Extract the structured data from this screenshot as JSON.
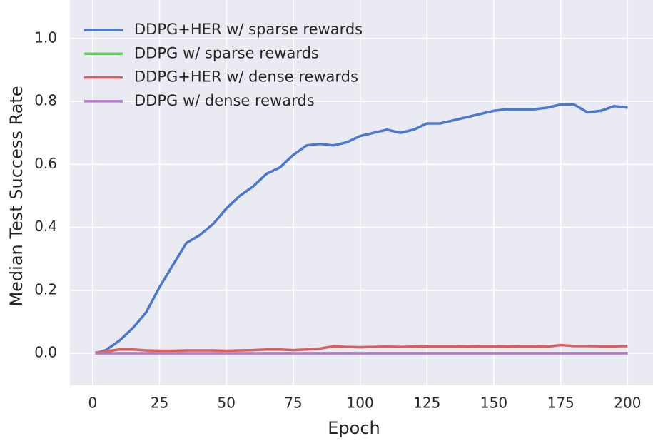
{
  "chart_data": {
    "type": "line",
    "x_label": "Epoch",
    "y_label": "Median Test Success Rate",
    "xlim": [
      -8.5,
      209.5
    ],
    "ylim": [
      -0.102,
      1.122
    ],
    "xticks": [
      0,
      25,
      50,
      75,
      100,
      125,
      150,
      175,
      200
    ],
    "yticks": [
      {
        "value": 0,
        "label": "0.0"
      },
      0.2,
      0.4,
      0.6,
      0.8,
      {
        "value": 1,
        "label": "1.0"
      }
    ],
    "grid": true,
    "legend": "upper left",
    "x": [
      1,
      5,
      10,
      15,
      20,
      25,
      30,
      35,
      40,
      45,
      50,
      55,
      60,
      65,
      70,
      75,
      80,
      85,
      90,
      95,
      100,
      105,
      110,
      115,
      120,
      125,
      130,
      135,
      140,
      145,
      150,
      155,
      160,
      165,
      170,
      175,
      180,
      185,
      190,
      195,
      200
    ],
    "series": [
      {
        "name": "DDPG+HER w/ sparse rewards",
        "color": "#4878cf",
        "values": [
          0.0,
          0.01,
          0.04,
          0.08,
          0.13,
          0.21,
          0.28,
          0.35,
          0.375,
          0.41,
          0.46,
          0.5,
          0.53,
          0.57,
          0.59,
          0.63,
          0.66,
          0.665,
          0.66,
          0.67,
          0.69,
          0.7,
          0.71,
          0.7,
          0.71,
          0.73,
          0.73,
          0.74,
          0.75,
          0.76,
          0.77,
          0.775,
          0.775,
          0.775,
          0.78,
          0.79,
          0.79,
          0.765,
          0.77,
          0.785,
          0.78
        ]
      },
      {
        "name": "DDPG w/ sparse rewards",
        "color": "#6acc65",
        "values": [
          0,
          0,
          0,
          0,
          0,
          0,
          0,
          0,
          0,
          0,
          0,
          0,
          0,
          0,
          0,
          0,
          0,
          0,
          0,
          0,
          0,
          0,
          0,
          0,
          0,
          0,
          0,
          0,
          0,
          0,
          0,
          0,
          0,
          0,
          0,
          0,
          0,
          0,
          0,
          0,
          0
        ]
      },
      {
        "name": "DDPG+HER w/ dense rewards",
        "color": "#d65f5f",
        "values": [
          0.002,
          0.006,
          0.012,
          0.012,
          0.009,
          0.008,
          0.008,
          0.009,
          0.009,
          0.009,
          0.008,
          0.009,
          0.01,
          0.012,
          0.012,
          0.01,
          0.012,
          0.015,
          0.022,
          0.02,
          0.019,
          0.02,
          0.021,
          0.02,
          0.021,
          0.022,
          0.022,
          0.022,
          0.021,
          0.022,
          0.022,
          0.021,
          0.022,
          0.022,
          0.021,
          0.026,
          0.023,
          0.023,
          0.022,
          0.022,
          0.023
        ]
      },
      {
        "name": "DDPG w/ dense rewards",
        "color": "#b47cc7",
        "values": [
          0,
          0,
          0,
          0,
          0,
          0,
          0,
          0,
          0,
          0,
          0,
          0,
          0,
          0,
          0,
          0,
          0,
          0,
          0,
          0,
          0,
          0,
          0,
          0,
          0,
          0,
          0,
          0,
          0,
          0,
          0,
          0,
          0,
          0,
          0,
          0,
          0,
          0,
          0,
          0,
          0
        ]
      }
    ]
  }
}
